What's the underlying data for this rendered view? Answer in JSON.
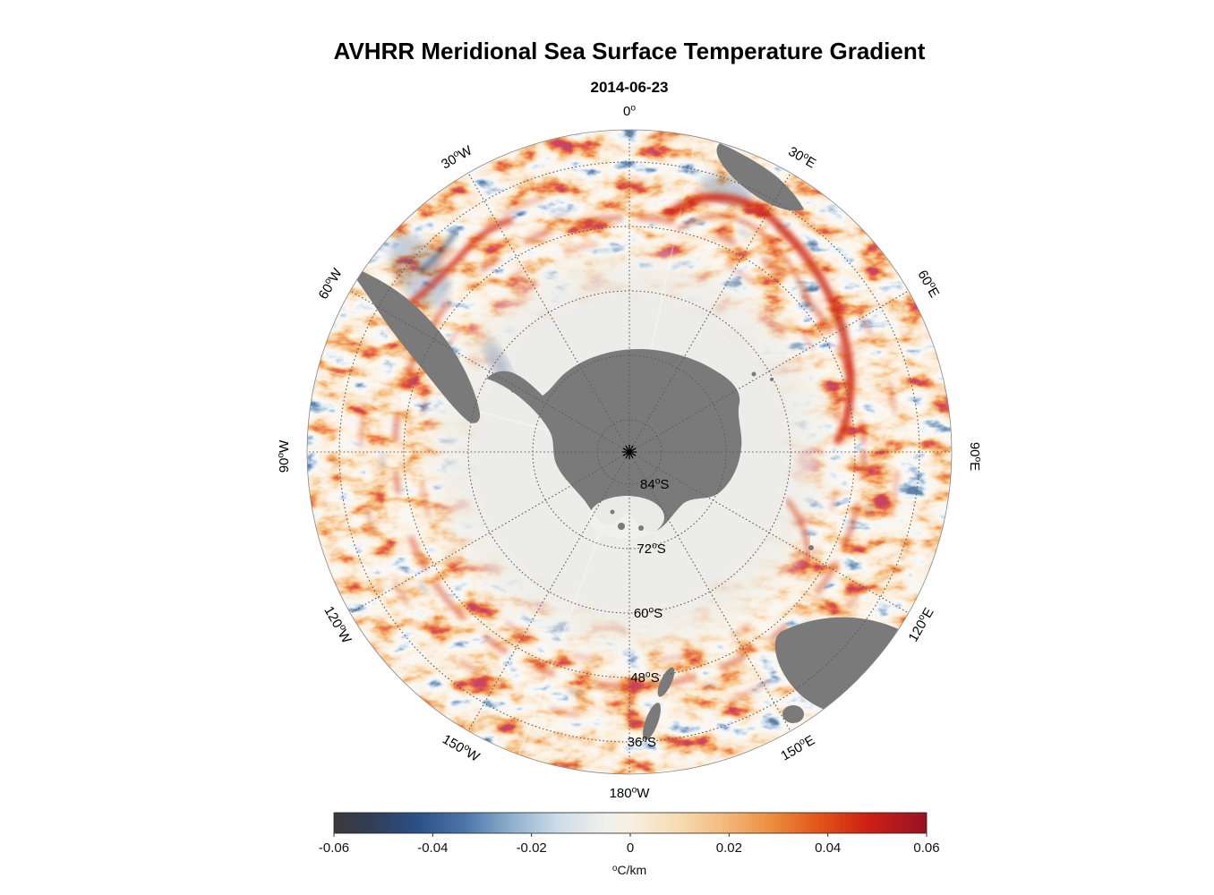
{
  "figure": {
    "title": "AVHRR Meridional Sea Surface Temperature Gradient",
    "subtitle": "2014-06-23"
  },
  "map": {
    "longitude_labels": [
      {
        "value": "0",
        "suffix": "",
        "lon": 0
      },
      {
        "value": "30",
        "suffix": "E",
        "lon": 30
      },
      {
        "value": "60",
        "suffix": "E",
        "lon": 60
      },
      {
        "value": "90",
        "suffix": "E",
        "lon": 90
      },
      {
        "value": "120",
        "suffix": "E",
        "lon": 120
      },
      {
        "value": "150",
        "suffix": "E",
        "lon": 150
      },
      {
        "value": "180",
        "suffix": "W",
        "lon": 180
      },
      {
        "value": "150",
        "suffix": "W",
        "lon": 210
      },
      {
        "value": "120",
        "suffix": "W",
        "lon": 240
      },
      {
        "value": "90",
        "suffix": "W",
        "lon": 270
      },
      {
        "value": "60",
        "suffix": "W",
        "lon": 300
      },
      {
        "value": "30",
        "suffix": "W",
        "lon": 330
      }
    ],
    "latitude_labels": [
      {
        "value": "84",
        "suffix": "S",
        "lat": 84
      },
      {
        "value": "72",
        "suffix": "S",
        "lat": 72
      },
      {
        "value": "60",
        "suffix": "S",
        "lat": 60
      },
      {
        "value": "48",
        "suffix": "S",
        "lat": 48
      },
      {
        "value": "36",
        "suffix": "S",
        "lat": 36
      }
    ]
  },
  "colorbar": {
    "ticks": [
      "-0.06",
      "-0.04",
      "-0.02",
      "0",
      "0.02",
      "0.04",
      "0.06"
    ],
    "unit_sup": "o",
    "unit": "C/km"
  },
  "chart_data": {
    "type": "heatmap",
    "title": "AVHRR Meridional Sea Surface Temperature Gradient",
    "date": "2014-06-23",
    "variable": "meridional sea surface temperature gradient",
    "units": "°C/km",
    "projection": "south polar stereographic (Antarctica centered)",
    "outer_latitude_deg_S": 30,
    "latitude_rings_deg_S": [
      84,
      72,
      60,
      48,
      36
    ],
    "longitude_spokes_deg": [
      0,
      30,
      60,
      90,
      120,
      150,
      180,
      210,
      240,
      270,
      300,
      330
    ],
    "colorbar": {
      "min": -0.06,
      "max": 0.06,
      "ticks": [
        -0.06,
        -0.04,
        -0.02,
        0,
        0.02,
        0.04,
        0.06
      ],
      "label": "°C/km",
      "orientation": "horizontal-bottom",
      "colors": [
        "#3a3a3a",
        "#2d3f5e",
        "#2c4f86",
        "#7096bd",
        "#c3d6e5",
        "#eef2f1",
        "#f9f0e2",
        "#f7d9b0",
        "#f2a558",
        "#e95c20",
        "#d31e18",
        "#9c1127"
      ]
    },
    "pattern_notes": "Mostly weak positive (cream/orange) gradients over the Southern Ocean with strong positive (red) filaments along the circumpolar frontal band, a pronounced red front southeast of Africa, mixed red/blue eddies east of South America, a near-zero pale zone around the Antarctic sea-ice edge, and gray land (Antarctica, southern South America, southern Africa, Australia/Tasmania, New Zealand)."
  }
}
